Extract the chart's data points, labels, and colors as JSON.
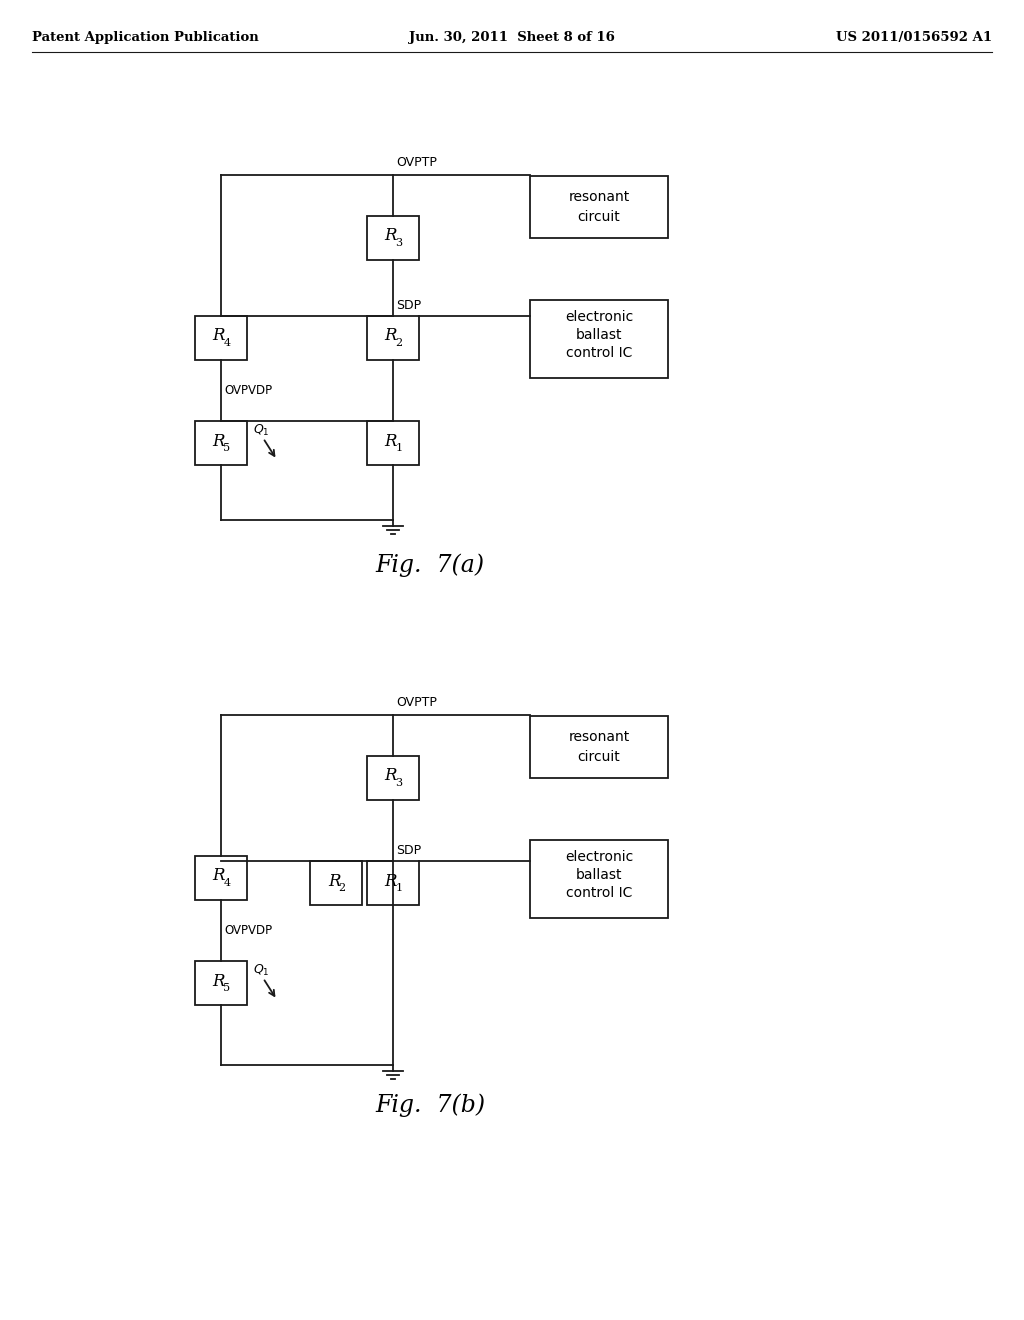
{
  "bg_color": "#ffffff",
  "header_left": "Patent Application Publication",
  "header_center": "Jun. 30, 2011  Sheet 8 of 16",
  "header_right": "US 2011/0156592 A1",
  "fig_a_label": "Fig.  7(a)",
  "fig_b_label": "Fig.  7(b)",
  "line_color": "#1a1a1a",
  "text_color": "#000000"
}
